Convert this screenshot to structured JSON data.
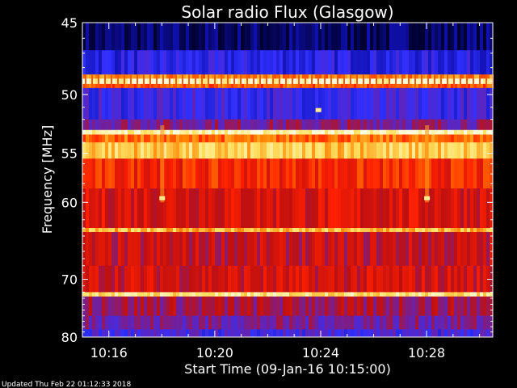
{
  "footer": "Updated Thu Feb 22 01:12:33 2018",
  "chart_data": {
    "type": "heatmap",
    "title": "Solar radio Flux (Glasgow)",
    "xlabel": "Start Time (09-Jan-16 10:15:00)",
    "ylabel": "Frequency [MHz]",
    "x_ticks": [
      "10:16",
      "10:20",
      "10:24",
      "10:28"
    ],
    "x_tick_minutes": [
      16,
      20,
      24,
      28
    ],
    "xlim_minutes": [
      15,
      30.5
    ],
    "y_ticks": [
      45,
      50,
      55,
      60,
      70,
      80
    ],
    "ylim": [
      45,
      80
    ],
    "y_scale": "reciprocal",
    "colormap": [
      "#000033",
      "#1010b0",
      "#3030ff",
      "#7020a0",
      "#c01010",
      "#ff2000",
      "#ff8000",
      "#ffe060",
      "#ffffe0"
    ],
    "bands": [
      {
        "from": 45,
        "to": 46.8,
        "level": 0.05
      },
      {
        "from": 46.8,
        "to": 48.5,
        "level": 0.22
      },
      {
        "from": 48.5,
        "to": 48.8,
        "level": 0.75
      },
      {
        "from": 48.8,
        "to": 49.2,
        "level": 0.98
      },
      {
        "from": 49.2,
        "to": 49.5,
        "level": 0.7
      },
      {
        "from": 49.5,
        "to": 52.0,
        "level": 0.26
      },
      {
        "from": 52.0,
        "to": 52.9,
        "level": 0.4
      },
      {
        "from": 52.9,
        "to": 53.3,
        "level": 0.95
      },
      {
        "from": 53.3,
        "to": 54.0,
        "level": 0.72
      },
      {
        "from": 54.0,
        "to": 55.5,
        "level": 0.85
      },
      {
        "from": 55.5,
        "to": 58.5,
        "level": 0.62
      },
      {
        "from": 58.5,
        "to": 63.0,
        "level": 0.55
      },
      {
        "from": 63.0,
        "to": 63.5,
        "level": 0.82
      },
      {
        "from": 63.5,
        "to": 68.0,
        "level": 0.5
      },
      {
        "from": 68.0,
        "to": 72.0,
        "level": 0.53
      },
      {
        "from": 72.0,
        "to": 72.7,
        "level": 0.9
      },
      {
        "from": 72.7,
        "to": 76.0,
        "level": 0.45
      },
      {
        "from": 76.0,
        "to": 78.5,
        "level": 0.38
      },
      {
        "from": 78.5,
        "to": 80.0,
        "level": 0.28
      }
    ],
    "bursts": [
      {
        "minute": 18.0,
        "freq": 59.5
      },
      {
        "minute": 28.0,
        "freq": 59.5
      },
      {
        "minute": 23.9,
        "freq": 51.2
      }
    ]
  }
}
